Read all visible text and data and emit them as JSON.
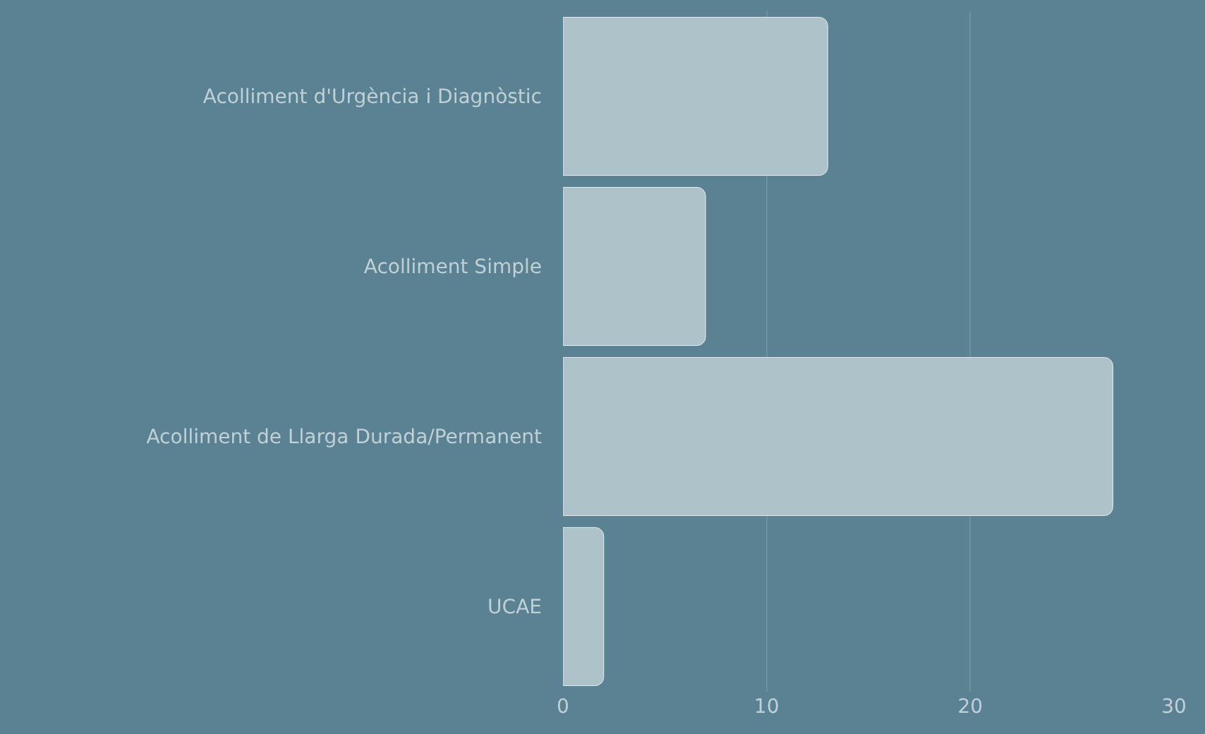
{
  "chart_data": {
    "type": "bar",
    "orientation": "horizontal",
    "categories": [
      "Acolliment d'Urgència i Diagnòstic",
      "Acolliment Simple",
      "Acolliment de Llarga Durada/Permanent",
      "UCAE"
    ],
    "values": [
      13,
      7,
      27,
      2
    ],
    "color": "#adc2c9",
    "xlim": [
      0,
      30
    ],
    "xticks": [
      0,
      10,
      20,
      30
    ],
    "grid": "x"
  }
}
